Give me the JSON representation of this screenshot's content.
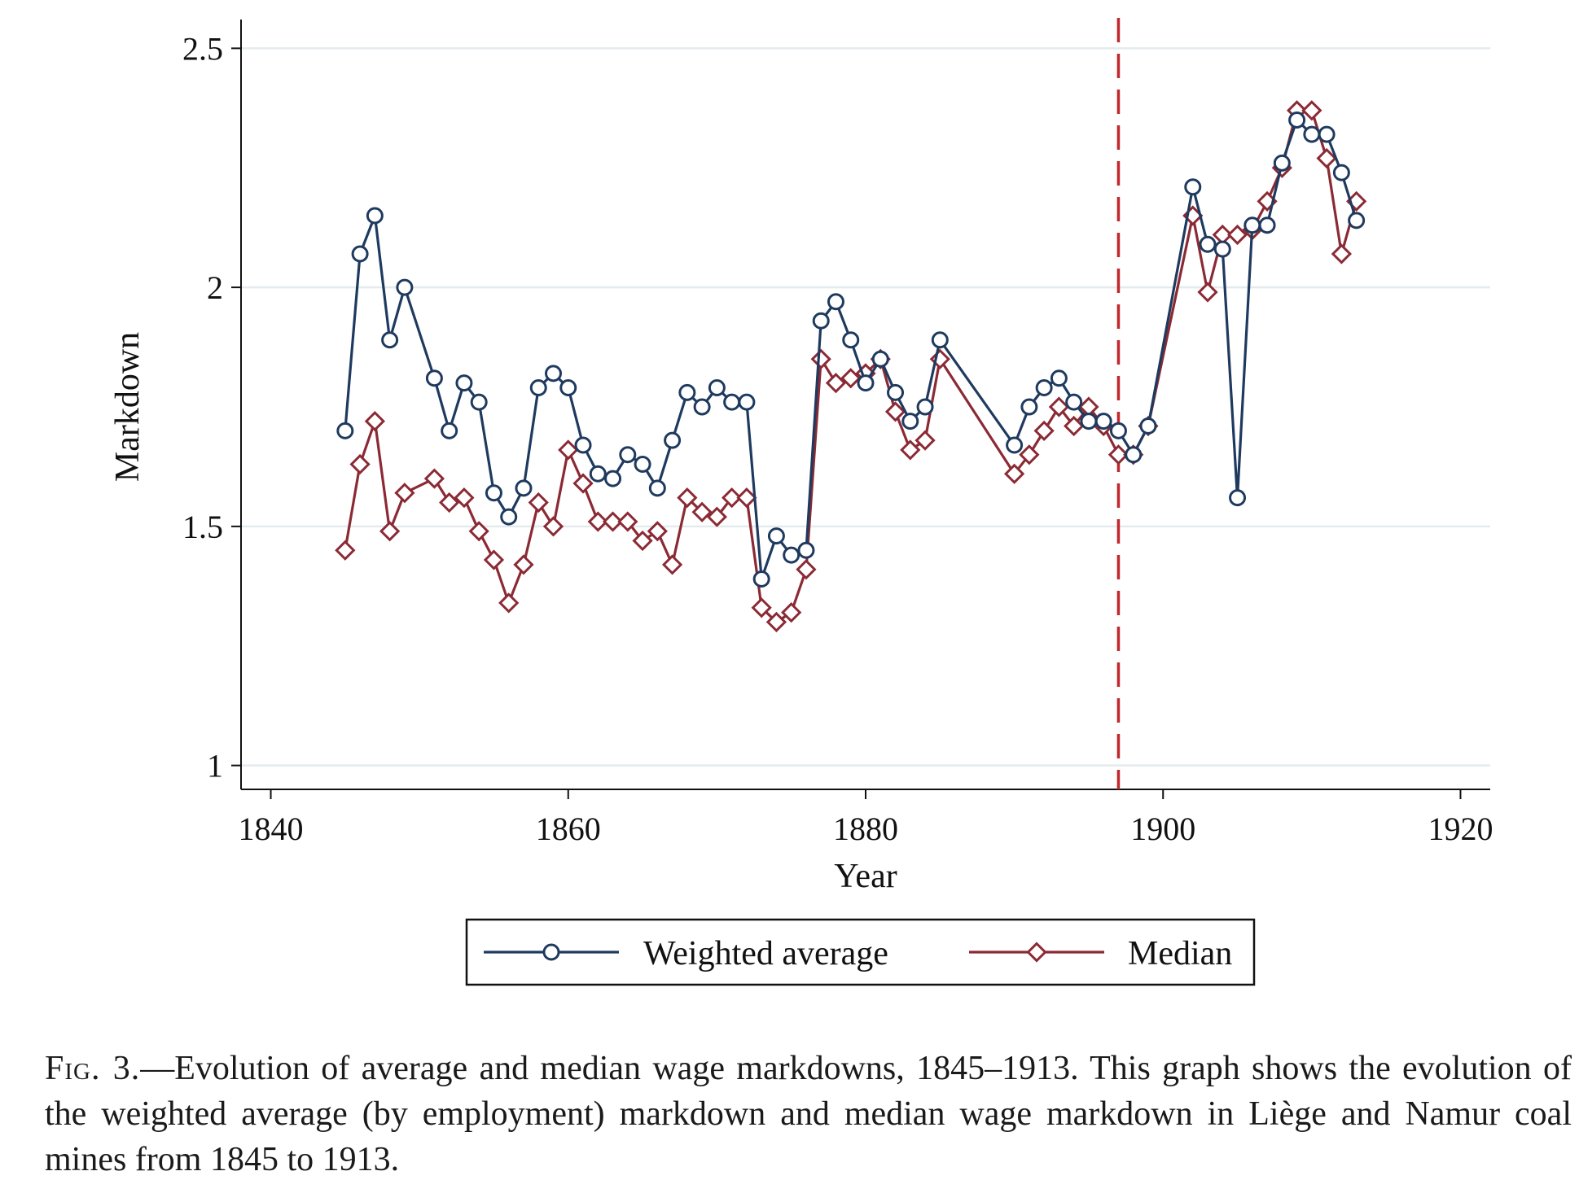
{
  "chart_data": {
    "type": "line",
    "xlabel": "Year",
    "ylabel": "Markdown",
    "xlim": [
      1838,
      1922
    ],
    "ylim": [
      0.95,
      2.55
    ],
    "xticks": [
      "1840",
      "1860",
      "1880",
      "1900",
      "1920"
    ],
    "yticks": [
      "1",
      "1.5",
      "2",
      "2.5"
    ],
    "grid": true,
    "vline_x": 1897,
    "legend_position": "bottom",
    "series": [
      {
        "name": "Weighted average",
        "marker": "circle",
        "color": "#1f3a5f",
        "points": [
          [
            1845,
            1.7
          ],
          [
            1846,
            2.07
          ],
          [
            1847,
            2.15
          ],
          [
            1848,
            1.89
          ],
          [
            1849,
            2.0
          ],
          [
            1851,
            1.81
          ],
          [
            1852,
            1.7
          ],
          [
            1853,
            1.8
          ],
          [
            1854,
            1.76
          ],
          [
            1855,
            1.57
          ],
          [
            1856,
            1.52
          ],
          [
            1857,
            1.58
          ],
          [
            1858,
            1.79
          ],
          [
            1859,
            1.82
          ],
          [
            1860,
            1.79
          ],
          [
            1861,
            1.67
          ],
          [
            1862,
            1.61
          ],
          [
            1863,
            1.6
          ],
          [
            1864,
            1.65
          ],
          [
            1865,
            1.63
          ],
          [
            1866,
            1.58
          ],
          [
            1867,
            1.68
          ],
          [
            1868,
            1.78
          ],
          [
            1869,
            1.75
          ],
          [
            1870,
            1.79
          ],
          [
            1871,
            1.76
          ],
          [
            1872,
            1.76
          ],
          [
            1873,
            1.39
          ],
          [
            1874,
            1.48
          ],
          [
            1875,
            1.44
          ],
          [
            1876,
            1.45
          ],
          [
            1877,
            1.93
          ],
          [
            1878,
            1.97
          ],
          [
            1879,
            1.89
          ],
          [
            1880,
            1.8
          ],
          [
            1881,
            1.85
          ],
          [
            1882,
            1.78
          ],
          [
            1883,
            1.72
          ],
          [
            1884,
            1.75
          ],
          [
            1885,
            1.89
          ],
          [
            1890,
            1.67
          ],
          [
            1891,
            1.75
          ],
          [
            1892,
            1.79
          ],
          [
            1893,
            1.81
          ],
          [
            1894,
            1.76
          ],
          [
            1895,
            1.72
          ],
          [
            1896,
            1.72
          ],
          [
            1897,
            1.7
          ],
          [
            1898,
            1.65
          ],
          [
            1899,
            1.71
          ],
          [
            1902,
            2.21
          ],
          [
            1903,
            2.09
          ],
          [
            1904,
            2.08
          ],
          [
            1905,
            1.56
          ],
          [
            1906,
            2.13
          ],
          [
            1907,
            2.13
          ],
          [
            1908,
            2.26
          ],
          [
            1909,
            2.35
          ],
          [
            1910,
            2.32
          ],
          [
            1911,
            2.32
          ],
          [
            1912,
            2.24
          ],
          [
            1913,
            2.14
          ]
        ]
      },
      {
        "name": "Median",
        "marker": "diamond",
        "color": "#8b2a34",
        "points": [
          [
            1845,
            1.45
          ],
          [
            1846,
            1.63
          ],
          [
            1847,
            1.72
          ],
          [
            1848,
            1.49
          ],
          [
            1849,
            1.57
          ],
          [
            1851,
            1.6
          ],
          [
            1852,
            1.55
          ],
          [
            1853,
            1.56
          ],
          [
            1854,
            1.49
          ],
          [
            1855,
            1.43
          ],
          [
            1856,
            1.34
          ],
          [
            1857,
            1.42
          ],
          [
            1858,
            1.55
          ],
          [
            1859,
            1.5
          ],
          [
            1860,
            1.66
          ],
          [
            1861,
            1.59
          ],
          [
            1862,
            1.51
          ],
          [
            1863,
            1.51
          ],
          [
            1864,
            1.51
          ],
          [
            1865,
            1.47
          ],
          [
            1866,
            1.49
          ],
          [
            1867,
            1.42
          ],
          [
            1868,
            1.56
          ],
          [
            1869,
            1.53
          ],
          [
            1870,
            1.52
          ],
          [
            1871,
            1.56
          ],
          [
            1872,
            1.56
          ],
          [
            1873,
            1.33
          ],
          [
            1874,
            1.3
          ],
          [
            1875,
            1.32
          ],
          [
            1876,
            1.41
          ],
          [
            1877,
            1.85
          ],
          [
            1878,
            1.8
          ],
          [
            1879,
            1.81
          ],
          [
            1880,
            1.82
          ],
          [
            1881,
            1.85
          ],
          [
            1882,
            1.74
          ],
          [
            1883,
            1.66
          ],
          [
            1884,
            1.68
          ],
          [
            1885,
            1.85
          ],
          [
            1890,
            1.61
          ],
          [
            1891,
            1.65
          ],
          [
            1892,
            1.7
          ],
          [
            1893,
            1.75
          ],
          [
            1894,
            1.71
          ],
          [
            1895,
            1.75
          ],
          [
            1896,
            1.71
          ],
          [
            1897,
            1.65
          ],
          [
            1898,
            1.65
          ],
          [
            1899,
            1.71
          ],
          [
            1902,
            2.15
          ],
          [
            1903,
            1.99
          ],
          [
            1904,
            2.11
          ],
          [
            1905,
            2.11
          ],
          [
            1906,
            2.12
          ],
          [
            1907,
            2.18
          ],
          [
            1908,
            2.25
          ],
          [
            1909,
            2.37
          ],
          [
            1910,
            2.37
          ],
          [
            1911,
            2.27
          ],
          [
            1912,
            2.07
          ],
          [
            1913,
            2.18
          ]
        ]
      }
    ]
  },
  "caption": {
    "label": "Fig. 3.",
    "text": "—Evolution of average and median wage markdowns, 1845–1913. This graph shows the evolution of the weighted average (by employment) markdown and median wage markdown in Liège and Namur coal mines from 1845 to 1913."
  }
}
